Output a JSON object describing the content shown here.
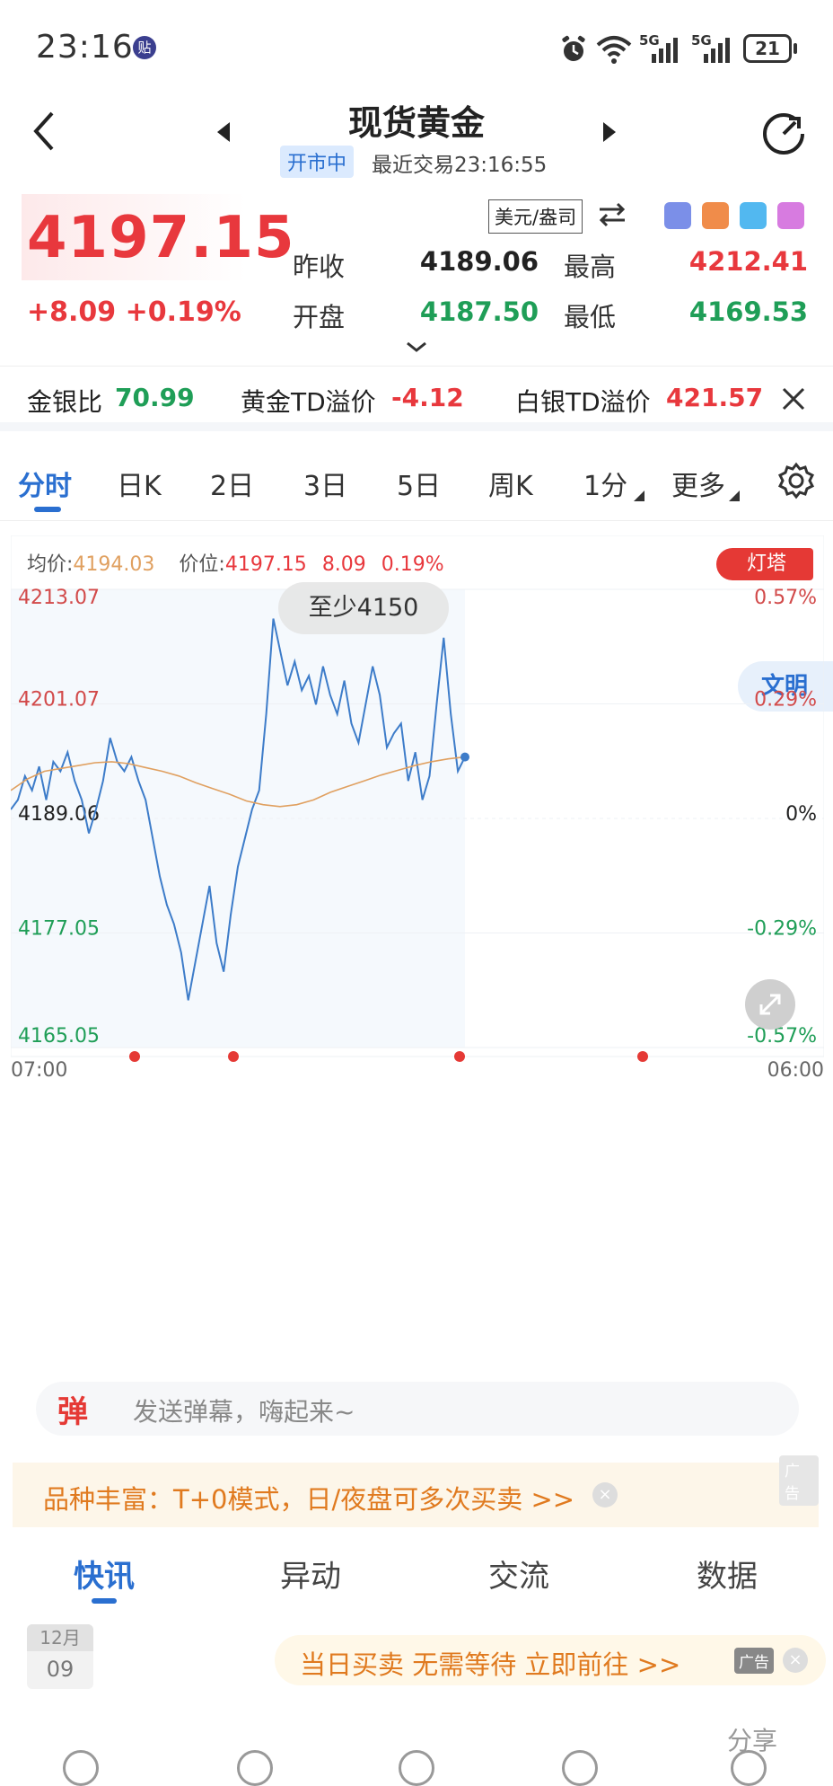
{
  "status_bar": {
    "time": "23:16",
    "notif_badge": "贴",
    "signal_1": "5G",
    "signal_2": "5G",
    "battery": "21"
  },
  "header": {
    "title": "现货黄金",
    "market_status": "开市中",
    "last_trade": "最近交易23:16:55"
  },
  "quote": {
    "price": "4197.15",
    "change": "+8.09  +0.19%",
    "currency": "美元/盎司",
    "prev_close_label": "昨收",
    "prev_close": "4189.06",
    "high_label": "最高",
    "high": "4212.41",
    "open_label": "开盘",
    "open": "4187.50",
    "low_label": "最低",
    "low": "4169.53"
  },
  "ratio_bar": {
    "gold_silver_label": "金银比",
    "gold_silver": "70.99",
    "gold_td_label": "黄金TD溢价",
    "gold_td": "-4.12",
    "silver_td_label": "白银TD溢价",
    "silver_td": "421.57"
  },
  "tabs": [
    {
      "label": "分时",
      "active": true
    },
    {
      "label": "日K"
    },
    {
      "label": "2日"
    },
    {
      "label": "3日"
    },
    {
      "label": "5日"
    },
    {
      "label": "周K"
    },
    {
      "label": "1分"
    },
    {
      "label": "更多"
    }
  ],
  "chart_info": {
    "avg_label": "均价:",
    "avg": "4194.03",
    "price_label": "价位:",
    "price": "4197.15",
    "chg": "8.09",
    "pct": "0.19%",
    "promo": "灯塔",
    "side_tag": "文明",
    "bubble": "至少4150"
  },
  "chart_data": {
    "type": "line",
    "y_ticks": [
      "4213.07",
      "4201.07",
      "4189.06",
      "4177.05",
      "4165.05"
    ],
    "pct_ticks": [
      "0.57%",
      "0.29%",
      "0%",
      "-0.29%",
      "-0.57%"
    ],
    "x_ticks": [
      "07:00",
      "06:00"
    ],
    "ylim": [
      4165.05,
      4213.07
    ],
    "base": 4189.06,
    "series": [
      {
        "values": [
          4190.0,
          4191.0,
          4193.5,
          4192.0,
          4194.5,
          4191.0,
          4195.0,
          4194.0,
          4196.0,
          4193.0,
          4191.0,
          4187.5,
          4190.0,
          4193.0,
          4197.5,
          4195.0,
          4194.0,
          4195.5,
          4193.0,
          4191.0,
          4187.0,
          4183.0,
          4180.0,
          4178.0,
          4175.0,
          4170.0,
          4174.0,
          4178.0,
          4182.0,
          4176.0,
          4173.0,
          4179.0,
          4184.0,
          4187.0,
          4190.0,
          4192.0,
          4200.0,
          4210.0,
          4206.5,
          4203.0,
          4205.5,
          4202.5,
          4204.0,
          4201.0,
          4205.0,
          4202.0,
          4200.0,
          4203.5,
          4199.0,
          4197.0,
          4201.0,
          4205.0,
          4202.0,
          4196.5,
          4198.0,
          4199.0,
          4193.0,
          4196.0,
          4191.0,
          4193.5,
          4201.0,
          4208.0,
          4200.0,
          4194.0,
          4195.5
        ]
      },
      {
        "values": [
          4192.0,
          4193.2,
          4194.0,
          4194.3,
          4194.6,
          4194.9,
          4195.0,
          4194.8,
          4194.4,
          4194.0,
          4193.5,
          4192.8,
          4192.2,
          4191.6,
          4190.9,
          4190.5,
          4190.3,
          4190.5,
          4191.0,
          4191.8,
          4192.4,
          4193.0,
          4193.6,
          4194.1,
          4194.6,
          4195.0,
          4195.3,
          4195.5
        ]
      }
    ]
  },
  "danmu": {
    "badge": "弹",
    "placeholder": "发送弹幕，嗨起来~"
  },
  "ad1": {
    "text": "品种丰富：T+0模式，日/夜盘可多次买卖 >>",
    "tag": "广告"
  },
  "news_tabs": [
    {
      "label": "快讯",
      "active": true
    },
    {
      "label": "异动"
    },
    {
      "label": "交流"
    },
    {
      "label": "数据"
    }
  ],
  "news": {
    "month": "12月",
    "day": "09",
    "ad_text": "当日买卖 无需等待 立即前往 >>",
    "ad_tag": "广告",
    "share": "分享"
  },
  "colors": {
    "up": "#e8383d",
    "down": "#1f9e57",
    "accent": "#2a6fd0",
    "line": "#3d7cc9",
    "avg": "#e0a060"
  }
}
